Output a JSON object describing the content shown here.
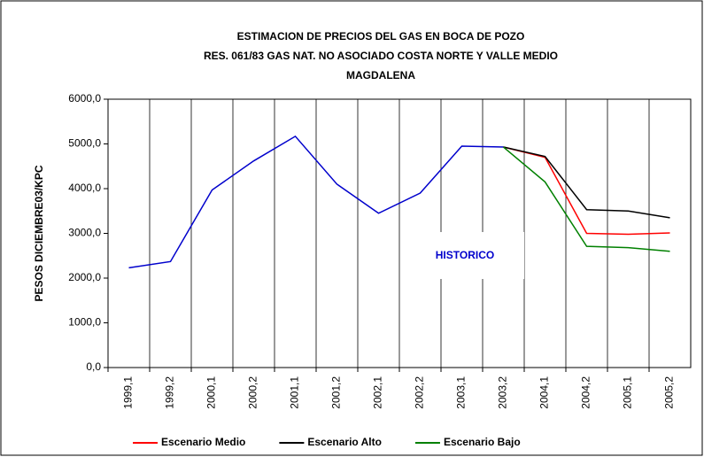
{
  "chart_data": {
    "type": "line",
    "title": [
      "ESTIMACION DE PRECIOS DEL GAS EN BOCA DE POZO",
      "RES. 061/83 GAS NAT. NO ASOCIADO COSTA NORTE Y VALLE MEDIO",
      "MAGDALENA"
    ],
    "y_label": "PESOS DICIEMBRE03/KPC",
    "annotation": "HISTORICO",
    "categories": [
      "1999,1",
      "1999,2",
      "2000,1",
      "2000,2",
      "2001,1",
      "2001,2",
      "2002,1",
      "2002,2",
      "2003,1",
      "2003,2",
      "2004,1",
      "2004,2",
      "2005,1",
      "2005,2"
    ],
    "series": [
      {
        "color": "#0000cc",
        "values": [
          2230,
          2370,
          3970,
          4620,
          5170,
          4100,
          3450,
          3900,
          4950,
          4930,
          null,
          null,
          null,
          null
        ]
      },
      {
        "name": "Escenario Medio",
        "color": "#ff0000",
        "values": [
          null,
          null,
          null,
          null,
          null,
          null,
          null,
          null,
          null,
          4930,
          4700,
          3000,
          2980,
          3010
        ]
      },
      {
        "name": "Escenario Alto",
        "color": "#000000",
        "values": [
          null,
          null,
          null,
          null,
          null,
          null,
          null,
          null,
          null,
          4930,
          4720,
          3530,
          3500,
          3350
        ]
      },
      {
        "name": "Escenario Bajo",
        "color": "#008000",
        "values": [
          null,
          null,
          null,
          null,
          null,
          null,
          null,
          null,
          null,
          4930,
          4150,
          2710,
          2680,
          2600
        ]
      }
    ],
    "ylim": [
      0,
      6000
    ],
    "yticks": [
      {
        "value": 0,
        "label": "0,0"
      },
      {
        "value": 1000,
        "label": "1000,0"
      },
      {
        "value": 2000,
        "label": "2000,0"
      },
      {
        "value": 3000,
        "label": "3000,0"
      },
      {
        "value": 4000,
        "label": "4000,0"
      },
      {
        "value": 5000,
        "label": "5000,0"
      },
      {
        "value": 6000,
        "label": "6000,0"
      }
    ],
    "grid": true
  }
}
